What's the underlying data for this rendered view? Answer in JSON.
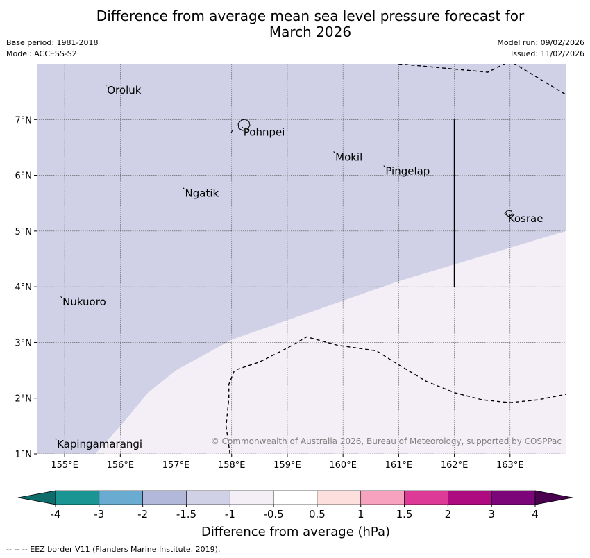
{
  "title_line1": "Difference from average mean sea level pressure forecast for",
  "title_line2": "March 2026",
  "base_period": "Base period: 1981-2018",
  "model": "Model: ACCESS-S2",
  "model_run": "Model run: 09/02/2026",
  "issued": "Issued: 11/02/2026",
  "copyright": "© Commonwealth of Australia 2026, Bureau of Meteorology, supported by COSPPac",
  "footer": "-- -- -- EEZ border V11 (Flanders Marine Institute, 2019).",
  "map": {
    "lon_range": [
      154.5,
      164.0
    ],
    "lat_range": [
      1.0,
      8.0
    ],
    "lon_ticks": [
      "155°E",
      "156°E",
      "157°E",
      "158°E",
      "159°E",
      "160°E",
      "161°E",
      "162°E",
      "163°E"
    ],
    "lat_ticks": [
      "1°N",
      "2°N",
      "3°N",
      "4°N",
      "5°N",
      "6°N",
      "7°N"
    ],
    "places": [
      {
        "name": "Oroluk",
        "lon": 155.75,
        "lat": 7.6
      },
      {
        "name": "Pohnpei",
        "lon": 158.2,
        "lat": 6.85
      },
      {
        "name": "Mokil",
        "lon": 159.85,
        "lat": 6.4
      },
      {
        "name": "Pingelap",
        "lon": 160.75,
        "lat": 6.15
      },
      {
        "name": "Ngatik",
        "lon": 157.15,
        "lat": 5.75
      },
      {
        "name": "Kosrae",
        "lon": 162.95,
        "lat": 5.3
      },
      {
        "name": "Nukuoro",
        "lon": 154.95,
        "lat": 3.8
      },
      {
        "name": "Kapingamarangi",
        "lon": 154.85,
        "lat": 1.25
      }
    ],
    "regions": {
      "negative_color": "#d0d1e6",
      "positive_color": "#f4eef6",
      "boundary_lonlat": [
        [
          155.55,
          1.0
        ],
        [
          156.0,
          1.5
        ],
        [
          156.5,
          2.1
        ],
        [
          157.0,
          2.5
        ],
        [
          158.0,
          3.05
        ],
        [
          159.0,
          3.4
        ],
        [
          160.0,
          3.75
        ],
        [
          161.0,
          4.1
        ],
        [
          162.0,
          4.4
        ],
        [
          163.0,
          4.7
        ],
        [
          164.0,
          5.0
        ]
      ]
    },
    "eez_lines": [
      [
        [
          161.0,
          8.0
        ],
        [
          162.6,
          7.85
        ],
        [
          163.0,
          8.05
        ],
        [
          164.0,
          7.45
        ]
      ],
      [
        [
          157.97,
          1.0
        ],
        [
          157.9,
          1.5
        ],
        [
          157.95,
          2.0
        ],
        [
          157.95,
          2.25
        ],
        [
          158.05,
          2.5
        ],
        [
          158.5,
          2.65
        ],
        [
          159.0,
          2.9
        ],
        [
          159.35,
          3.1
        ],
        [
          159.9,
          2.95
        ],
        [
          160.6,
          2.85
        ],
        [
          161.0,
          2.6
        ],
        [
          161.5,
          2.3
        ],
        [
          162.0,
          2.1
        ],
        [
          162.5,
          1.97
        ],
        [
          163.0,
          1.92
        ],
        [
          163.5,
          1.97
        ],
        [
          164.0,
          2.07
        ]
      ]
    ],
    "solid_line": [
      [
        162.0,
        7.0
      ],
      [
        162.0,
        4.0
      ]
    ]
  },
  "colorbar": {
    "label": "Difference from average (hPa)",
    "ticks": [
      "-4",
      "-3",
      "-2",
      "-1.5",
      "-1",
      "-0.5",
      "0.5",
      "1",
      "1.5",
      "2",
      "3",
      "4"
    ],
    "colors": [
      "#1b9494",
      "#6aabd2",
      "#b1b8d9",
      "#d0d1e6",
      "#f4eef6",
      "#ffffff",
      "#fde0dd",
      "#f7a2bf",
      "#dc3a96",
      "#ad0b7f",
      "#7b0579"
    ],
    "extend_low": "#0e6d6a",
    "extend_high": "#4a0150"
  }
}
